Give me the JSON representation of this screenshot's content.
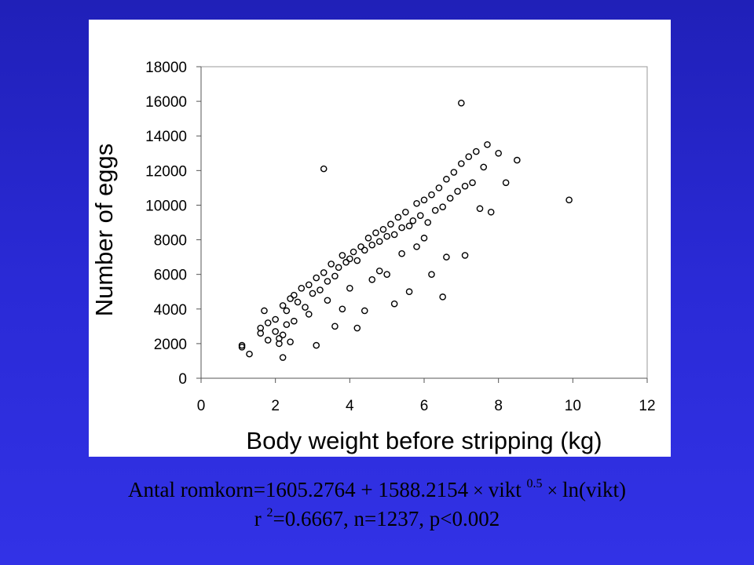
{
  "chart_data": {
    "type": "scatter",
    "title": "",
    "xlabel": "Body weight before stripping (kg)",
    "ylabel": "Number of eggs",
    "xlim": [
      0,
      12
    ],
    "ylim": [
      0,
      18000
    ],
    "x_ticks": [
      "0",
      "2",
      "4",
      "6",
      "8",
      "10",
      "12"
    ],
    "y_ticks": [
      "0",
      "2000",
      "4000",
      "6000",
      "8000",
      "10000",
      "12000",
      "14000",
      "16000",
      "18000"
    ],
    "marker": "open-circle",
    "grid": false,
    "legend": "none",
    "series": [
      {
        "x": [
          1.1,
          1.1,
          1.3,
          1.6,
          1.6,
          1.7,
          1.8,
          1.8,
          2.0,
          2.0,
          2.1,
          2.2,
          2.2,
          2.3,
          2.3,
          2.4,
          2.4,
          2.5,
          2.5,
          2.6,
          2.7,
          2.8,
          2.9,
          3.0,
          3.1,
          3.2,
          3.3,
          3.4,
          3.5,
          3.6,
          3.7,
          3.8,
          3.9,
          4.0,
          4.1,
          4.2,
          4.3,
          4.4,
          4.5,
          4.6,
          4.7,
          4.8,
          4.9,
          5.0,
          5.1,
          5.2,
          5.3,
          5.4,
          5.5,
          5.6,
          5.7,
          5.8,
          5.9,
          6.0,
          6.1,
          6.2,
          6.3,
          6.4,
          6.5,
          6.6,
          6.7,
          6.8,
          6.9,
          7.0,
          7.1,
          7.2,
          7.3,
          7.4,
          7.5,
          7.6,
          7.7,
          7.8,
          8.0,
          8.2,
          8.5,
          9.9,
          3.3,
          7.0,
          2.1,
          2.2,
          3.1,
          3.6,
          4.2,
          4.4,
          5.2,
          5.6,
          6.2,
          6.5,
          2.9,
          3.4,
          3.8,
          4.0,
          4.6,
          4.8,
          5.0,
          5.4,
          5.8,
          6.0,
          6.6,
          7.1
        ],
        "y": [
          1800,
          1900,
          1400,
          2600,
          2900,
          3900,
          3200,
          2200,
          3400,
          2700,
          2300,
          4200,
          1200,
          3900,
          3100,
          4600,
          2100,
          4800,
          3300,
          4400,
          5200,
          4100,
          5400,
          4900,
          5800,
          5100,
          6100,
          5600,
          6600,
          5900,
          6400,
          7100,
          6700,
          6900,
          7300,
          6800,
          7600,
          7400,
          8100,
          7700,
          8400,
          7900,
          8600,
          8200,
          8900,
          8300,
          9300,
          8700,
          9600,
          8800,
          9100,
          10100,
          9400,
          10300,
          9000,
          10600,
          9700,
          11000,
          9900,
          11500,
          10400,
          11900,
          10800,
          12400,
          11100,
          12800,
          11300,
          13100,
          9800,
          12200,
          13500,
          9600,
          13000,
          11300,
          12600,
          10300,
          12100,
          15900,
          2000,
          2500,
          1900,
          3000,
          2900,
          3900,
          4300,
          5000,
          6000,
          4700,
          3700,
          4500,
          4000,
          5200,
          5700,
          6200,
          6000,
          7200,
          7600,
          8100,
          7000,
          7100
        ]
      }
    ]
  },
  "caption": {
    "line1_text": "Antal romkorn=1605.2764 + 1588.2154",
    "line1_times1": "×",
    "line1_vikt": "vikt",
    "line1_exp": "0.5",
    "line1_times2": "×",
    "line1_ln": "ln(vikt)",
    "line2_r": "r",
    "line2_exp": "2",
    "line2_rest": "=0.6667, n=1237, p<0.002"
  }
}
